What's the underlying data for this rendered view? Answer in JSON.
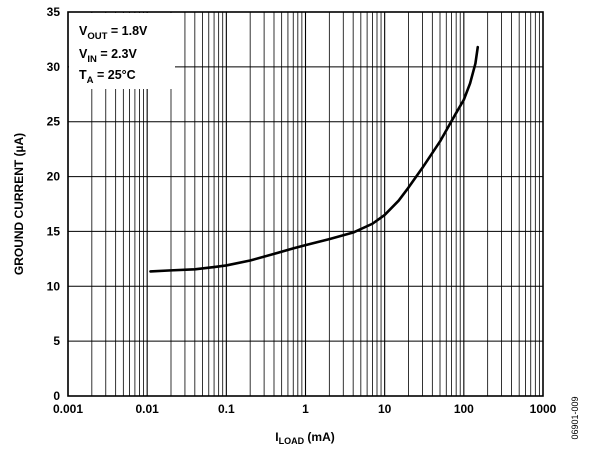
{
  "chart_data": {
    "type": "line",
    "xscale": "log",
    "xlim": [
      0.001,
      1000
    ],
    "ylim": [
      0,
      35
    ],
    "grid": true,
    "x_tick_labels": [
      "0.001",
      "0.01",
      "0.1",
      "1",
      "10",
      "100",
      "1000"
    ],
    "y_tick_labels": [
      "0",
      "5",
      "10",
      "15",
      "20",
      "25",
      "30",
      "35"
    ],
    "xlabel": {
      "main": "I",
      "sub": "LOAD",
      "rest": " (mA)"
    },
    "ylabel": "GROUND CURRENT (µA)",
    "annotations": [
      {
        "main": "V",
        "sub": "OUT",
        "rest": " = 1.8V"
      },
      {
        "main": "V",
        "sub": "IN",
        "rest": " = 2.3V"
      },
      {
        "main": "T",
        "sub": "A",
        "rest": " = 25°C"
      }
    ],
    "legend_position": "top-left",
    "figure_id": "06901-009",
    "series": [
      {
        "x": [
          0.011,
          0.02,
          0.04,
          0.07,
          0.1,
          0.2,
          0.4,
          0.7,
          1,
          2,
          4,
          7,
          10,
          15,
          20,
          30,
          50,
          80,
          100,
          120,
          140,
          150
        ],
        "y": [
          11.35,
          11.45,
          11.55,
          11.75,
          11.9,
          12.35,
          12.95,
          13.45,
          13.75,
          14.3,
          14.9,
          15.7,
          16.5,
          17.8,
          19.0,
          20.8,
          23.2,
          25.8,
          27.0,
          28.5,
          30.3,
          31.8
        ],
        "color": "#000000"
      }
    ]
  }
}
